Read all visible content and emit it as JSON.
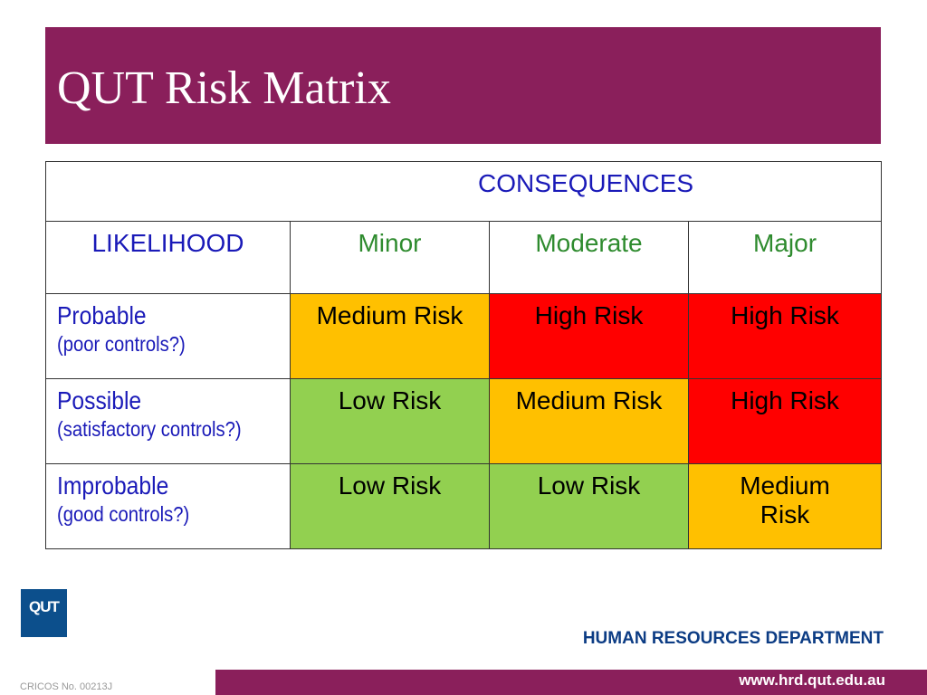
{
  "title": "QUT Risk Matrix",
  "matrix": {
    "consequences_label": "CONSEQUENCES",
    "likelihood_label": "LIKELIHOOD",
    "columns": [
      "Minor",
      "Moderate",
      "Major"
    ],
    "rows": [
      {
        "label": "Probable",
        "sublabel": "(poor controls?)",
        "cells": [
          "Medium Risk",
          "High Risk",
          "High Risk"
        ]
      },
      {
        "label": "Possible",
        "sublabel": "(satisfactory controls?)",
        "cells": [
          "Low Risk",
          "Medium Risk",
          "High Risk"
        ]
      },
      {
        "label": "Improbable",
        "sublabel": "(good controls?)",
        "cells": [
          "Low Risk",
          "Low Risk",
          "Medium Risk"
        ]
      }
    ],
    "colors": {
      "low": "#92d050",
      "medium": "#ffc000",
      "high": "#ff0000"
    }
  },
  "logo_text": "QUT",
  "department": "HUMAN RESOURCES DEPARTMENT",
  "cricos": "CRICOS No. 00213J",
  "url": "www.hrd.qut.edu.au",
  "brand_color": "#8a1f5b"
}
